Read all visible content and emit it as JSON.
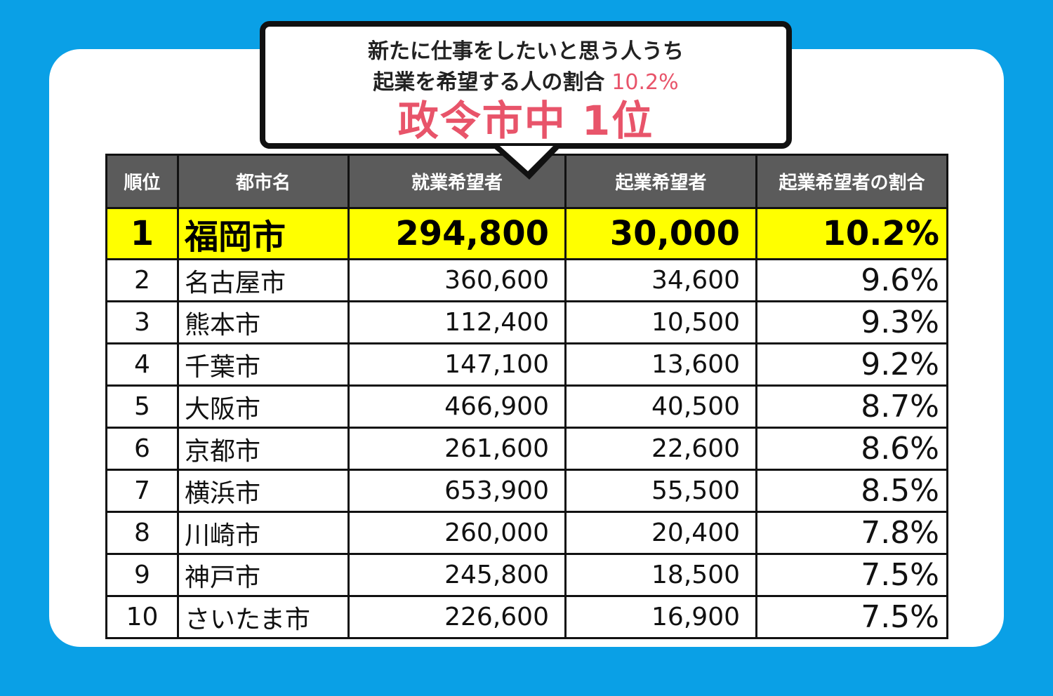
{
  "callout": {
    "line1": "新たに仕事をしたいと思う人うち",
    "line2": "起業を希望する人の割合",
    "line2_value": "10.2%",
    "line3": "政令市中 1位"
  },
  "colors": {
    "background": "#0aa0e6",
    "header": "#5b5b5b",
    "highlight": "#ffff00",
    "accent": "#e8546a"
  },
  "chart_data": {
    "type": "table",
    "columns": [
      "順位",
      "都市名",
      "就業希望者",
      "起業希望者",
      "起業希望者の割合"
    ],
    "rows": [
      [
        "1",
        "福岡市",
        "294,800",
        "30,000",
        "10.2%"
      ],
      [
        "2",
        "名古屋市",
        "360,600",
        "34,600",
        "9.6%"
      ],
      [
        "3",
        "熊本市",
        "112,400",
        "10,500",
        "9.3%"
      ],
      [
        "4",
        "千葉市",
        "147,100",
        "13,600",
        "9.2%"
      ],
      [
        "5",
        "大阪市",
        "466,900",
        "40,500",
        "8.7%"
      ],
      [
        "6",
        "京都市",
        "261,600",
        "22,600",
        "8.6%"
      ],
      [
        "7",
        "横浜市",
        "653,900",
        "55,500",
        "8.5%"
      ],
      [
        "8",
        "川崎市",
        "260,000",
        "20,400",
        "7.8%"
      ],
      [
        "9",
        "神戸市",
        "245,800",
        "18,500",
        "7.5%"
      ],
      [
        "10",
        "さいたま市",
        "226,600",
        "16,900",
        "7.5%"
      ]
    ]
  }
}
